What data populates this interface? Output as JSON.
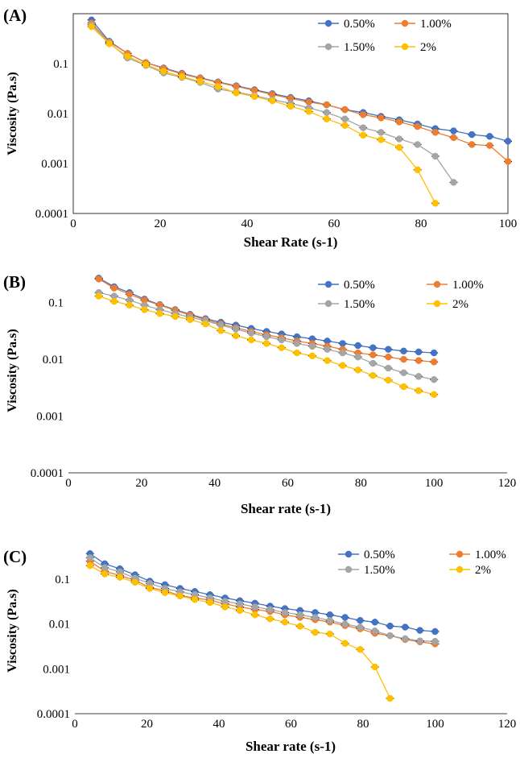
{
  "colors": {
    "0.50%": "#4472c4",
    "1.00%": "#ed7d31",
    "1.50%": "#a5a5a5",
    "2%": "#ffc000"
  },
  "chart_data": [
    {
      "panel_label": "(A)",
      "type": "line",
      "xlabel": "Shear Rate (s-1)",
      "ylabel": "Viscosity (Pa.s)",
      "xlim": [
        0,
        100
      ],
      "ylim": [
        0.0001,
        1
      ],
      "yscale": "log",
      "xticks": [
        "0",
        "20",
        "40",
        "60",
        "80",
        "100"
      ],
      "yticks": [
        "0.0001",
        "0.001",
        "0.01",
        "0.1"
      ],
      "legend": [
        "0.50%",
        "1.00%",
        "1.50%",
        "2%"
      ],
      "series": [
        {
          "name": "0.50%",
          "x": [
            4.2,
            8.3,
            12.5,
            16.7,
            20.8,
            25,
            29.2,
            33.3,
            37.5,
            41.7,
            45.8,
            50,
            54.2,
            58.3,
            62.5,
            66.7,
            70.8,
            75,
            79.2,
            83.3,
            87.5,
            91.7,
            95.8,
            100
          ],
          "y": [
            0.75,
            0.28,
            0.16,
            0.105,
            0.082,
            0.064,
            0.052,
            0.043,
            0.036,
            0.03,
            0.025,
            0.021,
            0.018,
            0.015,
            0.012,
            0.0105,
            0.0088,
            0.0075,
            0.0062,
            0.005,
            0.0045,
            0.0038,
            0.0035,
            0.0028
          ]
        },
        {
          "name": "1.00%",
          "x": [
            4.2,
            8.3,
            12.5,
            16.7,
            20.8,
            25,
            29.2,
            33.3,
            37.5,
            41.7,
            45.8,
            50,
            54.2,
            58.3,
            62.5,
            66.7,
            70.8,
            75,
            79.2,
            83.3,
            87.5,
            91.7,
            95.8,
            100
          ],
          "y": [
            0.65,
            0.27,
            0.16,
            0.105,
            0.08,
            0.062,
            0.051,
            0.042,
            0.035,
            0.029,
            0.024,
            0.02,
            0.017,
            0.015,
            0.012,
            0.0095,
            0.0082,
            0.0068,
            0.0055,
            0.0042,
            0.0033,
            0.0024,
            0.0023,
            0.0011
          ]
        },
        {
          "name": "1.50%",
          "x": [
            4.2,
            8.3,
            12.5,
            16.7,
            20.8,
            25,
            29.2,
            33.3,
            37.5,
            41.7,
            45.8,
            50,
            54.2,
            58.3,
            62.5,
            66.7,
            70.8,
            75,
            79.2,
            83.3,
            87.5
          ],
          "y": [
            0.6,
            0.26,
            0.13,
            0.092,
            0.065,
            0.053,
            0.042,
            0.031,
            0.027,
            0.023,
            0.019,
            0.016,
            0.013,
            0.0105,
            0.0078,
            0.0052,
            0.0042,
            0.0031,
            0.0024,
            0.0014,
            0.00042
          ]
        },
        {
          "name": "2%",
          "x": [
            4.2,
            8.3,
            12.5,
            16.7,
            20.8,
            25,
            29.2,
            33.3,
            37.5,
            41.7,
            45.8,
            50,
            54.2,
            58.3,
            62.5,
            66.7,
            70.8,
            75,
            79.2,
            83.3
          ],
          "y": [
            0.55,
            0.25,
            0.14,
            0.095,
            0.07,
            0.055,
            0.044,
            0.035,
            0.026,
            0.022,
            0.018,
            0.014,
            0.011,
            0.0078,
            0.0058,
            0.0037,
            0.003,
            0.0021,
            0.00075,
            0.00016
          ]
        }
      ]
    },
    {
      "panel_label": "(B)",
      "type": "line",
      "xlabel": "Shear rate (s-1)",
      "ylabel": "Viscosity (Pa.s)",
      "xlim": [
        0,
        120
      ],
      "ylim": [
        0.0001,
        0.3
      ],
      "yscale": "log",
      "xticks": [
        "0",
        "20",
        "40",
        "60",
        "80",
        "100",
        "120"
      ],
      "yticks": [
        "0.0001",
        "0.001",
        "0.01",
        "0.1"
      ],
      "legend": [
        "0.50%",
        "1.00%",
        "1.50%",
        "2%"
      ],
      "series": [
        {
          "name": "0.50%",
          "x": [
            8.3,
            12.5,
            16.7,
            20.8,
            25,
            29.2,
            33.3,
            37.5,
            41.7,
            45.8,
            50,
            54.2,
            58.3,
            62.5,
            66.7,
            70.8,
            75,
            79.2,
            83.3,
            87.5,
            91.7,
            95.8,
            100
          ],
          "y": [
            0.27,
            0.19,
            0.15,
            0.115,
            0.092,
            0.075,
            0.062,
            0.052,
            0.045,
            0.04,
            0.035,
            0.031,
            0.028,
            0.025,
            0.023,
            0.021,
            0.019,
            0.0175,
            0.016,
            0.015,
            0.014,
            0.0135,
            0.013
          ]
        },
        {
          "name": "1.00%",
          "x": [
            8.3,
            12.5,
            16.7,
            20.8,
            25,
            29.2,
            33.3,
            37.5,
            41.7,
            45.8,
            50,
            54.2,
            58.3,
            62.5,
            66.7,
            70.8,
            75,
            79.2,
            83.3,
            87.5,
            91.7,
            95.8,
            100
          ],
          "y": [
            0.26,
            0.18,
            0.14,
            0.11,
            0.09,
            0.073,
            0.06,
            0.05,
            0.042,
            0.036,
            0.031,
            0.027,
            0.024,
            0.021,
            0.019,
            0.017,
            0.015,
            0.013,
            0.012,
            0.011,
            0.01,
            0.0095,
            0.009
          ]
        },
        {
          "name": "1.50%",
          "x": [
            8.3,
            12.5,
            16.7,
            20.8,
            25,
            29.2,
            33.3,
            37.5,
            41.7,
            45.8,
            50,
            54.2,
            58.3,
            62.5,
            66.7,
            70.8,
            75,
            79.2,
            83.3,
            87.5,
            91.7,
            95.8,
            100
          ],
          "y": [
            0.15,
            0.13,
            0.11,
            0.09,
            0.075,
            0.064,
            0.055,
            0.048,
            0.04,
            0.034,
            0.029,
            0.025,
            0.022,
            0.019,
            0.017,
            0.015,
            0.013,
            0.011,
            0.0085,
            0.007,
            0.0058,
            0.005,
            0.0044
          ]
        },
        {
          "name": "2%",
          "x": [
            8.3,
            12.5,
            16.7,
            20.8,
            25,
            29.2,
            33.3,
            37.5,
            41.7,
            45.8,
            50,
            54.2,
            58.3,
            62.5,
            66.7,
            70.8,
            75,
            79.2,
            83.3,
            87.5,
            91.7,
            95.8,
            100
          ],
          "y": [
            0.13,
            0.105,
            0.09,
            0.075,
            0.064,
            0.057,
            0.05,
            0.042,
            0.032,
            0.026,
            0.022,
            0.019,
            0.016,
            0.013,
            0.0115,
            0.0095,
            0.0078,
            0.0065,
            0.0052,
            0.0043,
            0.0033,
            0.0028,
            0.0024
          ]
        }
      ]
    },
    {
      "panel_label": "(C)",
      "type": "line",
      "xlabel": "Shear rate (s-1)",
      "ylabel": "Viscosity (Pa.s)",
      "xlim": [
        0,
        120
      ],
      "ylim": [
        0.0001,
        0.5
      ],
      "yscale": "log",
      "xticks": [
        "0",
        "20",
        "40",
        "60",
        "80",
        "100",
        "120"
      ],
      "yticks": [
        "0.0001",
        "0.001",
        "0.01",
        "0.1"
      ],
      "legend": [
        "0.50%",
        "1.00%",
        "1.50%",
        "2%"
      ],
      "series": [
        {
          "name": "0.50%",
          "x": [
            4.2,
            8.3,
            12.5,
            16.7,
            20.8,
            25,
            29.2,
            33.3,
            37.5,
            41.7,
            45.8,
            50,
            54.2,
            58.3,
            62.5,
            66.7,
            70.8,
            75,
            79.2,
            83.3,
            87.5,
            91.7,
            95.8,
            100
          ],
          "y": [
            0.37,
            0.22,
            0.17,
            0.125,
            0.09,
            0.075,
            0.062,
            0.053,
            0.045,
            0.038,
            0.033,
            0.029,
            0.025,
            0.022,
            0.02,
            0.018,
            0.016,
            0.014,
            0.012,
            0.011,
            0.009,
            0.0085,
            0.0072,
            0.0068
          ]
        },
        {
          "name": "1.00%",
          "x": [
            4.2,
            8.3,
            12.5,
            16.7,
            20.8,
            25,
            29.2,
            33.3,
            37.5,
            41.7,
            45.8,
            50,
            54.2,
            58.3,
            62.5,
            66.7,
            70.8,
            75,
            79.2,
            83.3,
            87.5,
            91.7,
            95.8,
            100
          ],
          "y": [
            0.25,
            0.15,
            0.12,
            0.095,
            0.065,
            0.055,
            0.043,
            0.038,
            0.034,
            0.028,
            0.024,
            0.021,
            0.019,
            0.016,
            0.014,
            0.0125,
            0.011,
            0.0092,
            0.0078,
            0.0062,
            0.0055,
            0.0045,
            0.004,
            0.0036
          ]
        },
        {
          "name": "1.50%",
          "x": [
            4.2,
            8.3,
            12.5,
            16.7,
            20.8,
            25,
            29.2,
            33.3,
            37.5,
            41.7,
            45.8,
            50,
            54.2,
            58.3,
            62.5,
            66.7,
            70.8,
            75,
            79.2,
            83.3,
            87.5,
            91.7,
            95.8,
            100
          ],
          "y": [
            0.3,
            0.18,
            0.145,
            0.105,
            0.08,
            0.062,
            0.052,
            0.045,
            0.038,
            0.032,
            0.028,
            0.024,
            0.021,
            0.018,
            0.016,
            0.014,
            0.012,
            0.01,
            0.0085,
            0.007,
            0.0055,
            0.0047,
            0.0042,
            0.0041
          ]
        },
        {
          "name": "2%",
          "x": [
            4.2,
            8.3,
            12.5,
            16.7,
            20.8,
            25,
            29.2,
            33.3,
            37.5,
            41.7,
            45.8,
            50,
            54.2,
            58.3,
            62.5,
            66.7,
            70.8,
            75,
            79.2,
            83.3,
            87.5
          ],
          "y": [
            0.2,
            0.13,
            0.11,
            0.085,
            0.062,
            0.05,
            0.042,
            0.035,
            0.03,
            0.024,
            0.02,
            0.016,
            0.013,
            0.011,
            0.0089,
            0.0065,
            0.006,
            0.0037,
            0.0027,
            0.0011,
            0.00022
          ]
        }
      ]
    }
  ]
}
